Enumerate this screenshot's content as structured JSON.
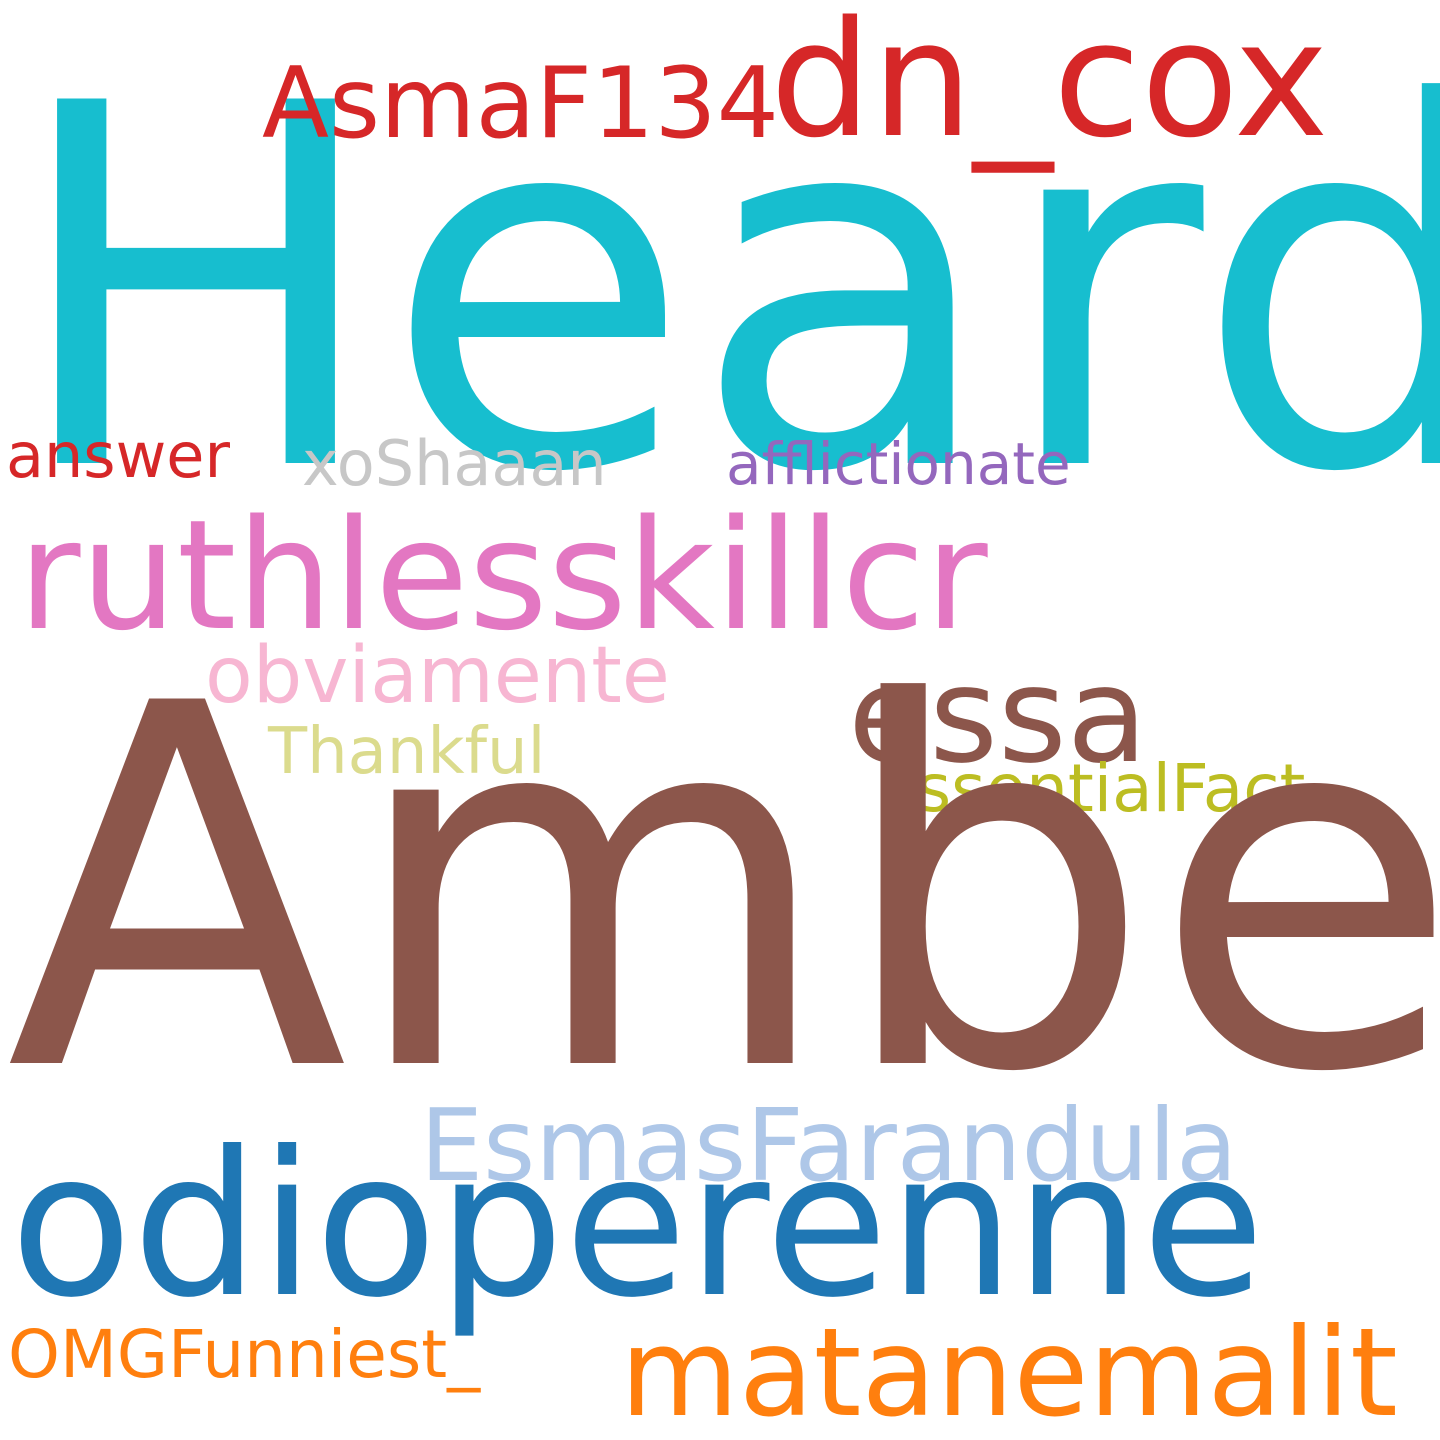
{
  "canvas": {
    "background": "#ffffff"
  },
  "words": [
    {
      "key": "heard",
      "text": "Heard",
      "color": "#17becf"
    },
    {
      "key": "dncox",
      "text": "dn_cox",
      "color": "#d62728"
    },
    {
      "key": "asma",
      "text": "AsmaF134",
      "color": "#d62728"
    },
    {
      "key": "answer",
      "text": "answer",
      "color": "#d62728"
    },
    {
      "key": "xoshaaan",
      "text": "xoShaaan",
      "color": "#c7c7c7"
    },
    {
      "key": "afflict",
      "text": "afflictionate",
      "color": "#9467bd"
    },
    {
      "key": "ruthless",
      "text": "ruthlesskillcr",
      "color": "#e377c2"
    },
    {
      "key": "obviamente",
      "text": "obviamente",
      "color": "#f7b6d2"
    },
    {
      "key": "essa",
      "text": "essa",
      "color": "#8c564b"
    },
    {
      "key": "thankful",
      "text": "Thankful",
      "color": "#dbdb8d"
    },
    {
      "key": "essential",
      "text": "EssentialFact",
      "color": "#bcbd22"
    },
    {
      "key": "amber",
      "text": "Amber",
      "color": "#8c564b"
    },
    {
      "key": "esmas",
      "text": "EsmasFarandula",
      "color": "#aec7e8"
    },
    {
      "key": "odio",
      "text": "odioperenne",
      "color": "#1f77b4"
    },
    {
      "key": "omg",
      "text": "OMGFunniest_",
      "color": "#ff7f0e"
    },
    {
      "key": "matane",
      "text": "matanemalit",
      "color": "#ff7f0e"
    }
  ]
}
